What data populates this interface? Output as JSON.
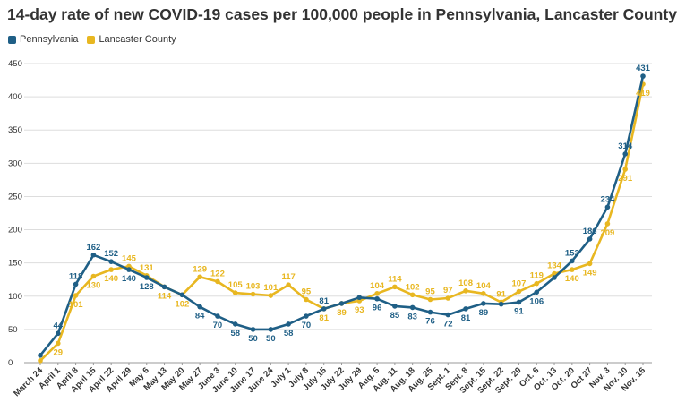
{
  "chart_data": {
    "type": "line",
    "title": "14-day rate of new COVID-19 cases per 100,000 people in Pennsylvania, Lancaster County",
    "xlabel": "",
    "ylabel": "",
    "ylim": [
      0,
      450
    ],
    "yticks": [
      0,
      50,
      100,
      150,
      200,
      250,
      300,
      350,
      400,
      450
    ],
    "grid": true,
    "legend_position": "top-left",
    "categories": [
      "March 24",
      "April 1",
      "April 8",
      "April 15",
      "April 22",
      "April 29",
      "May 6",
      "May 13",
      "May 20",
      "May 27",
      "June 3",
      "June 10",
      "June 17",
      "June 24",
      "July 1",
      "July 8",
      "July 15",
      "July 22",
      "July 29",
      "Aug. 5",
      "Aug. 11",
      "Aug. 18",
      "Aug. 25",
      "Sept. 1",
      "Sept. 8",
      "Sept. 15",
      "Sept. 22",
      "Sept. 29",
      "Oct. 6",
      "Oct. 13",
      "Oct. 20",
      "Oct 27",
      "Nov. 3",
      "Nov. 10",
      "Nov. 16"
    ],
    "series": [
      {
        "name": "Pennsylvania",
        "color": "#1f5f86",
        "values": [
          11,
          44,
          118,
          162,
          152,
          140,
          128,
          114,
          102,
          84,
          70,
          58,
          50,
          50,
          58,
          70,
          81,
          89,
          98,
          96,
          85,
          83,
          76,
          72,
          81,
          89,
          88,
          91,
          106,
          128,
          153,
          186,
          234,
          314,
          431
        ]
      },
      {
        "name": "Lancaster County",
        "color": "#e8b721",
        "values": [
          3,
          29,
          101,
          130,
          140,
          145,
          131,
          114,
          102,
          129,
          122,
          105,
          103,
          101,
          117,
          95,
          81,
          89,
          93,
          104,
          114,
          102,
          95,
          97,
          108,
          104,
          91,
          107,
          119,
          134,
          140,
          149,
          209,
          291,
          419
        ]
      }
    ],
    "labels": {
      "Pennsylvania": {
        "1": "44",
        "2": "118",
        "3": "162",
        "4": "152",
        "5": "140",
        "6": "128",
        "9": "84",
        "10": "70",
        "11": "58",
        "12": "50",
        "13": "50",
        "14": "58",
        "15": "70",
        "16": "81",
        "19": "96",
        "20": "85",
        "21": "83",
        "22": "76",
        "23": "72",
        "24": "81",
        "25": "89",
        "27": "91",
        "28": "106",
        "30": "153",
        "31": "186",
        "32": "234",
        "33": "314",
        "34": "431"
      },
      "Lancaster County": {
        "1": "29",
        "2": "101",
        "3": "130",
        "4": "140",
        "5": "145",
        "6": "131",
        "7": "114",
        "8": "102",
        "9": "129",
        "10": "122",
        "11": "105",
        "12": "103",
        "13": "101",
        "14": "117",
        "15": "95",
        "16": "81",
        "17": "89",
        "18": "93",
        "19": "104",
        "20": "114",
        "21": "102",
        "22": "95",
        "23": "97",
        "24": "108",
        "25": "104",
        "26": "91",
        "27": "107",
        "28": "119",
        "29": "134",
        "30": "140",
        "31": "149",
        "32": "209",
        "33": "291",
        "34": "419"
      }
    }
  }
}
